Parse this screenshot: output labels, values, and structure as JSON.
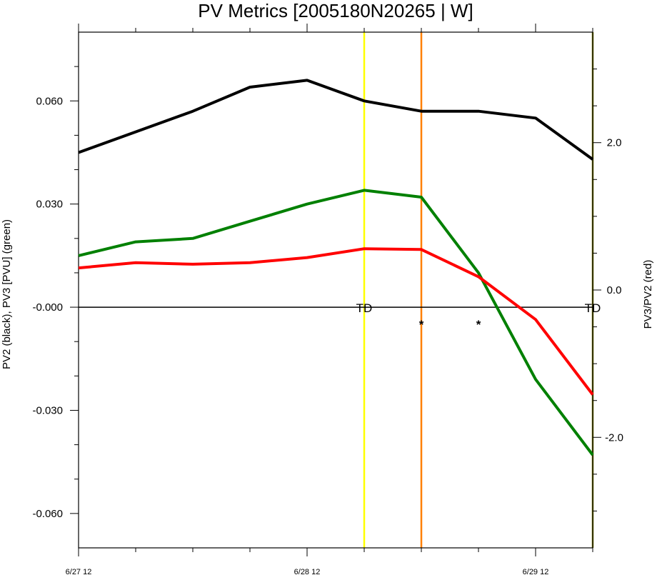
{
  "chart_data": {
    "type": "line",
    "title": "PV Metrics [2005180N20265 | W]",
    "left_axis": {
      "label": "PV2 (black), PV3 [PVU] (green)",
      "ticks": [
        0.06,
        0.03,
        0.0,
        -0.03,
        -0.06
      ],
      "tick_labels": [
        "0.060",
        "0.030",
        "-0.000",
        "-0.030",
        "-0.060"
      ],
      "ylim": [
        -0.07,
        0.08
      ]
    },
    "right_axis": {
      "label": "PV3/PV2 (red)",
      "ticks": [
        2.0,
        0.0,
        -2.0
      ],
      "tick_labels": [
        "2.0",
        "0.0",
        "-2.0"
      ],
      "ylim": [
        -3.5,
        3.5
      ]
    },
    "x": {
      "ticks": [
        0,
        4,
        8
      ],
      "tick_labels": [
        "6/27 12",
        "6/28 12",
        "6/29 12"
      ],
      "xlim": [
        0,
        9
      ]
    },
    "series": [
      {
        "axis": "left",
        "color": "#000000",
        "x": [
          0,
          1,
          2,
          3,
          4,
          5,
          6,
          7,
          8,
          9
        ],
        "values": [
          0.045,
          0.051,
          0.057,
          0.064,
          0.066,
          0.06,
          0.057,
          0.057,
          0.055,
          0.043
        ]
      },
      {
        "axis": "left",
        "color": "#008000",
        "x": [
          0,
          1,
          2,
          3,
          4,
          5,
          6,
          7,
          8,
          9
        ],
        "values": [
          0.015,
          0.019,
          0.02,
          0.025,
          0.03,
          0.034,
          0.032,
          0.01,
          -0.021,
          -0.043
        ]
      },
      {
        "axis": "right",
        "color": "#ff0000",
        "x": [
          0,
          1,
          2,
          3,
          4,
          5,
          6,
          7,
          8,
          9
        ],
        "values": [
          0.3,
          0.37,
          0.35,
          0.37,
          0.44,
          0.56,
          0.55,
          0.18,
          -0.4,
          -1.42
        ]
      }
    ],
    "vertical_lines": [
      {
        "x": 5,
        "color": "#ffff00"
      },
      {
        "x": 6,
        "color": "#ff8000"
      },
      {
        "x": 9,
        "color": "#808000"
      }
    ],
    "zero_line": 0.0,
    "annotations": [
      {
        "text": "TD",
        "x": 5,
        "y": 0.0
      },
      {
        "text": "TD",
        "x": 9,
        "y": 0.0
      },
      {
        "text": "*",
        "x": 6,
        "y": 0.0
      },
      {
        "text": "*",
        "x": 7,
        "y": 0.0
      }
    ],
    "grid": false
  }
}
